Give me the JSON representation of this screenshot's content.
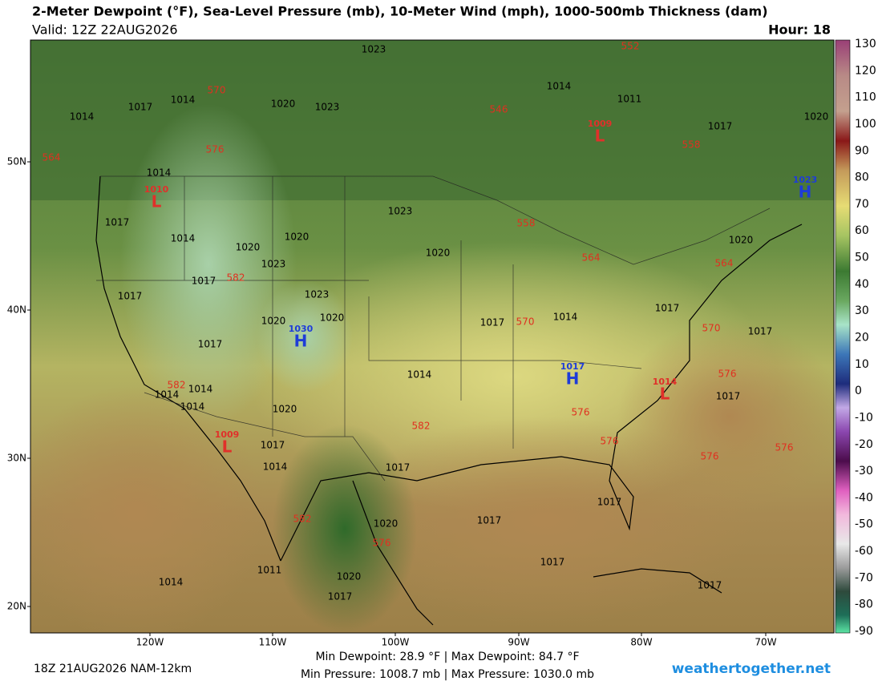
{
  "header": {
    "title": "2-Meter Dewpoint (°F), Sea-Level Pressure (mb), 10-Meter Wind (mph), 1000-500mb Thickness (dam)",
    "valid": "Valid: 12Z 22AUG2026",
    "hour": "Hour: 18"
  },
  "map": {
    "latitudes": [
      "50N",
      "40N",
      "30N",
      "20N"
    ],
    "longitudes": [
      "120W",
      "110W",
      "100W",
      "90W",
      "80W",
      "70W"
    ],
    "centers": [
      {
        "pressure": "1010",
        "letter": "L"
      },
      {
        "pressure": "1009",
        "letter": "L"
      },
      {
        "pressure": "1023",
        "letter": "H"
      },
      {
        "pressure": "1030",
        "letter": "H"
      },
      {
        "pressure": "1017",
        "letter": "H"
      },
      {
        "pressure": "1014",
        "letter": "L"
      },
      {
        "pressure": "1009",
        "letter": "L"
      }
    ],
    "isobar_labels": [
      "1023",
      "1014",
      "1017",
      "1014",
      "1020",
      "1023",
      "1014",
      "1011",
      "1017",
      "1020",
      "1014",
      "1017",
      "1014",
      "1023",
      "1020",
      "1020",
      "1023",
      "1020",
      "1017",
      "1017",
      "1023",
      "1020",
      "1020",
      "1017",
      "1014",
      "1017",
      "1017",
      "1017",
      "1014",
      "1014",
      "1014",
      "1014",
      "1020",
      "1017",
      "1017",
      "1014",
      "1017",
      "1017",
      "1017",
      "1020",
      "1017",
      "1011",
      "1014",
      "1020",
      "1017",
      "1017",
      "1020"
    ],
    "thickness_labels": [
      "552",
      "546",
      "570",
      "576",
      "564",
      "558",
      "558",
      "564",
      "564",
      "582",
      "570",
      "570",
      "576",
      "582",
      "582",
      "576",
      "576",
      "576",
      "576",
      "582",
      "576"
    ]
  },
  "colorbar": {
    "ticks": [
      130,
      120,
      110,
      100,
      90,
      80,
      70,
      60,
      50,
      40,
      30,
      20,
      10,
      0,
      -10,
      -20,
      -30,
      -40,
      -50,
      -60,
      -70,
      -80,
      -90
    ]
  },
  "footer": {
    "run": "18Z 21AUG2026 NAM-12km",
    "dewpoint": "Min Dewpoint:  28.9 °F | Max Dewpoint:  84.7 °F",
    "pressure": "Min Pressure: 1008.7 mb | Max Pressure: 1030.0 mb",
    "site": "weathertogether.net"
  }
}
